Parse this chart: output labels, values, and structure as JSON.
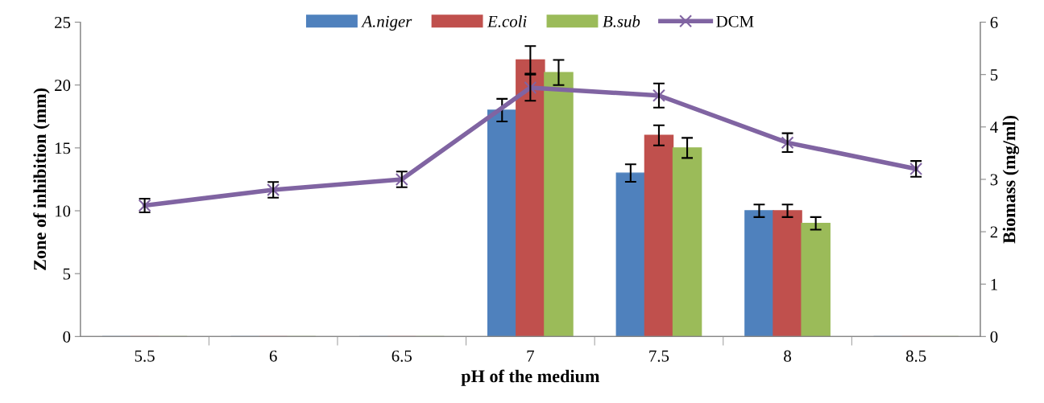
{
  "chart_data": {
    "type": "bar",
    "categories": [
      "5.5",
      "6",
      "6.5",
      "7",
      "7.5",
      "8",
      "8.5"
    ],
    "xlabel": "pH of the medium",
    "ylabel": "Zone of inhibition (mm)",
    "y2label": "Biomass (mg/ml)",
    "ylim": [
      0,
      25
    ],
    "yticks": [
      0,
      5,
      10,
      15,
      20,
      25
    ],
    "y2lim": [
      0,
      6
    ],
    "y2ticks": [
      0,
      1,
      2,
      3,
      4,
      5,
      6
    ],
    "legend": "top",
    "grid": false,
    "series": [
      {
        "name": "A.niger",
        "color": "#4f81bd",
        "values": [
          0,
          0,
          0,
          18,
          13,
          10,
          0
        ],
        "errors": [
          null,
          null,
          null,
          0.9,
          0.7,
          0.5,
          null
        ]
      },
      {
        "name": "E.coli",
        "color": "#c0504d",
        "values": [
          0,
          0,
          0,
          22,
          16,
          10,
          0
        ],
        "errors": [
          null,
          null,
          null,
          1.1,
          0.8,
          0.5,
          null
        ]
      },
      {
        "name": "B.sub",
        "color": "#9bbb59",
        "values": [
          0,
          0,
          0,
          21,
          15,
          9,
          0
        ],
        "errors": [
          null,
          null,
          null,
          1.0,
          0.8,
          0.5,
          null
        ]
      },
      {
        "name": "DCM",
        "type": "line",
        "axis": "y2",
        "color": "#8064a2",
        "marker": "cross",
        "values": [
          2.5,
          2.8,
          3.0,
          4.75,
          4.6,
          3.7,
          3.2
        ],
        "errors": [
          0.13,
          0.15,
          0.15,
          0.25,
          0.23,
          0.18,
          0.15
        ]
      }
    ]
  }
}
